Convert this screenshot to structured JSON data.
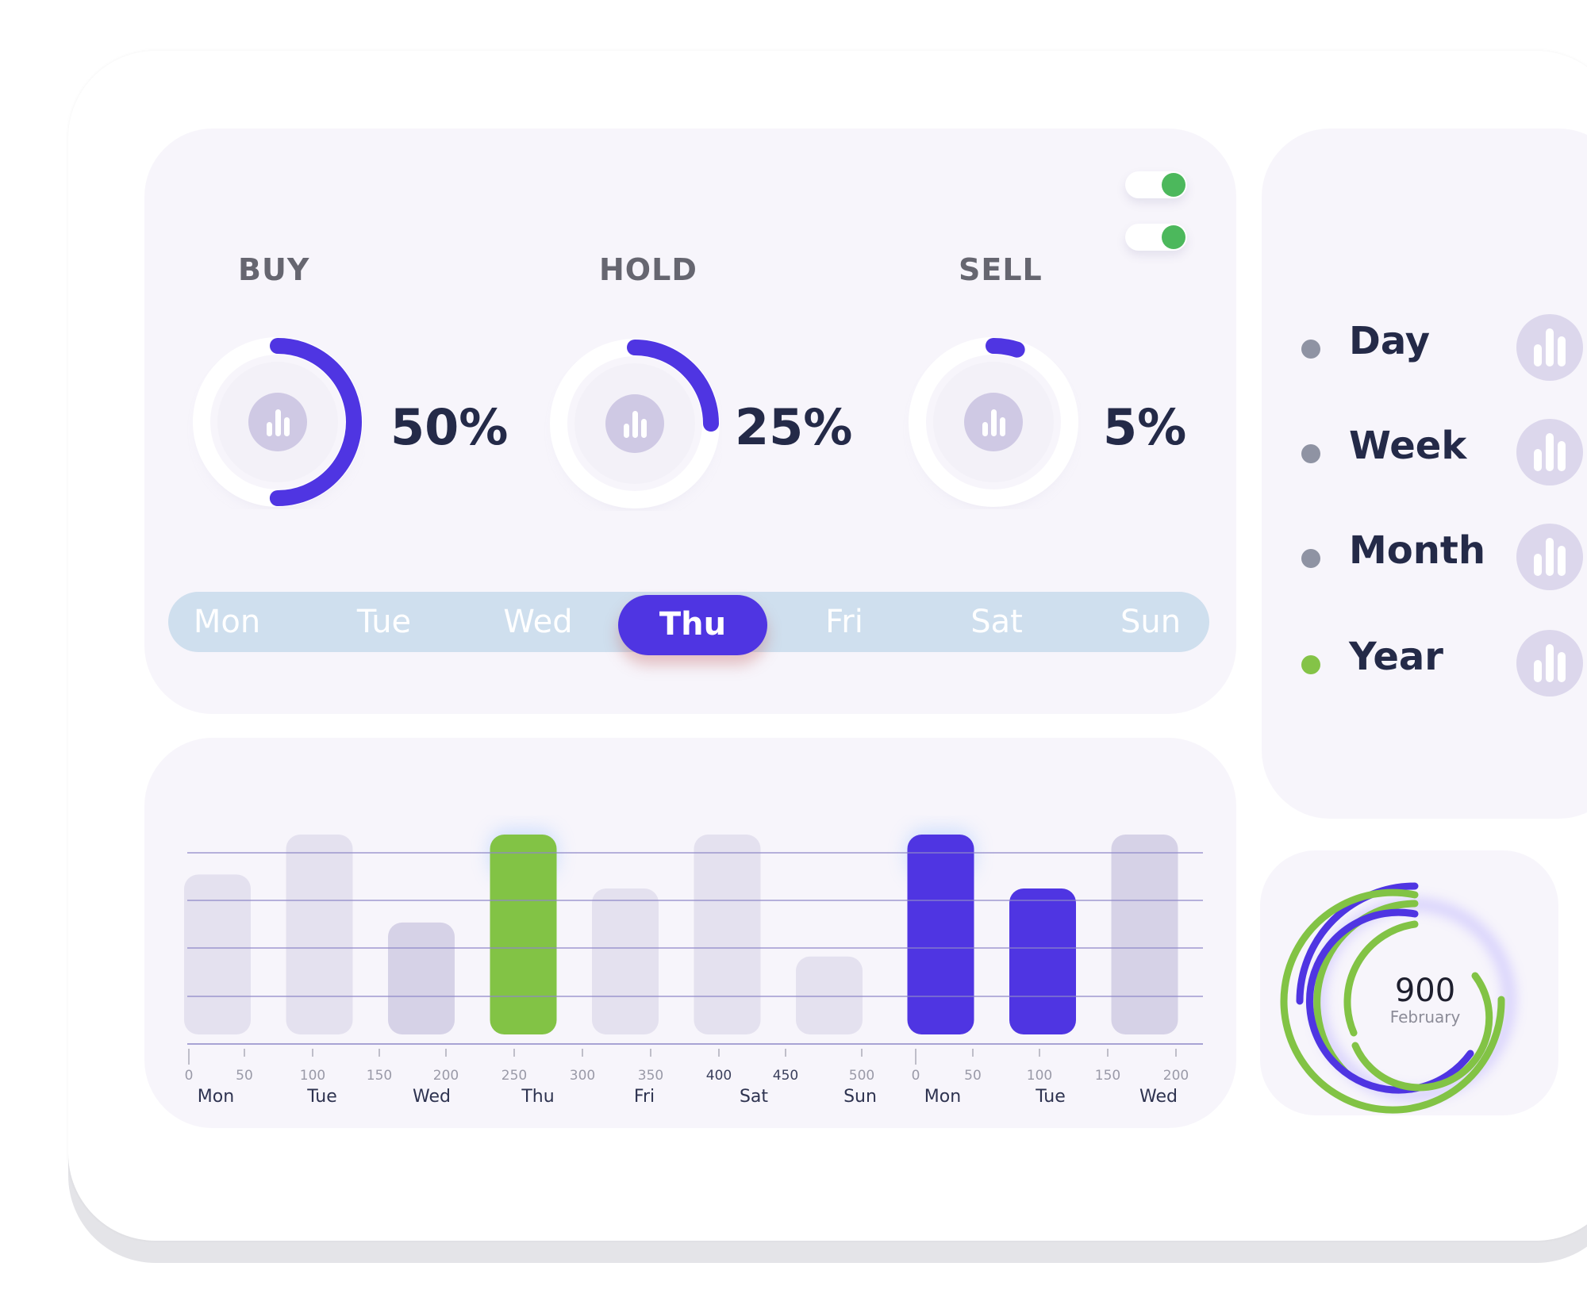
{
  "toggles": [
    {
      "name": "toggle-1",
      "on": true
    },
    {
      "name": "toggle-2",
      "on": true
    }
  ],
  "stats": [
    {
      "label": "BUY",
      "percent_text": "50%",
      "value": 50
    },
    {
      "label": "HOLD",
      "percent_text": "25%",
      "value": 25
    },
    {
      "label": "SELL",
      "percent_text": "5%",
      "value": 5
    }
  ],
  "days": [
    "Mon",
    "Tue",
    "Wed",
    "Thu",
    "Fri",
    "Sat",
    "Sun"
  ],
  "selected_day": "Thu",
  "periods": [
    {
      "label": "Day",
      "dot_color": "#8f93a3"
    },
    {
      "label": "Week",
      "dot_color": "#8f93a3"
    },
    {
      "label": "Month",
      "dot_color": "#8f93a3"
    },
    {
      "label": "Year",
      "dot_color": "#84c347"
    }
  ],
  "donut": {
    "value": "900",
    "label": "February"
  },
  "chart_data": {
    "type": "bar",
    "x_tick_values": [
      "0",
      "50",
      "100",
      "150",
      "200",
      "250",
      "300",
      "350",
      "400",
      "450",
      "500",
      "0",
      "50",
      "100",
      "150",
      "200"
    ],
    "x_day_labels": [
      "Mon",
      "Tue",
      "Wed",
      "Thu",
      "Fri",
      "Sat",
      "Sun",
      "Mon",
      "Tue",
      "Wed"
    ],
    "bars": [
      {
        "value": 0.8,
        "color": "#e4e1ef"
      },
      {
        "value": 1.0,
        "color": "#e4e1ef"
      },
      {
        "value": 0.56,
        "color": "#d6d2e7"
      },
      {
        "value": 1.0,
        "color": "#82c345"
      },
      {
        "value": 0.73,
        "color": "#e4e1ef"
      },
      {
        "value": 1.0,
        "color": "#e4e1ef"
      },
      {
        "value": 0.39,
        "color": "#e4e1ef"
      },
      {
        "value": 1.0,
        "color": "#4f35e2"
      },
      {
        "value": 0.73,
        "color": "#4f35e2"
      },
      {
        "value": 1.0,
        "color": "#d6d2e7"
      }
    ],
    "grid": true,
    "accent_colors": {
      "primary": "#4f35e2",
      "green": "#82c345"
    }
  }
}
